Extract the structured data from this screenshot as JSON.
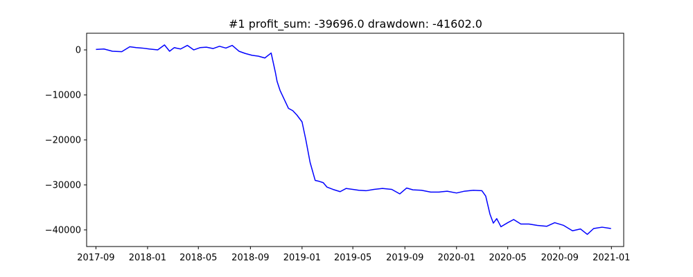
{
  "chart_data": {
    "type": "line",
    "title": "#1   profit_sum: -39696.0 drawdown: -41602.0",
    "xlabel": "",
    "ylabel": "",
    "x_scale": "time",
    "xlim": [
      "2017-08-10",
      "2021-01-30"
    ],
    "ylim": [
      -43700,
      3700
    ],
    "grid": false,
    "x_ticks": [
      "2017-09",
      "2018-01",
      "2018-05",
      "2018-09",
      "2019-01",
      "2019-05",
      "2019-09",
      "2020-01",
      "2020-05",
      "2020-09",
      "2021-01"
    ],
    "y_ticks": [
      0,
      -10000,
      -20000,
      -30000,
      -40000
    ],
    "y_tick_labels": [
      "0",
      "−10000",
      "−20000",
      "−30000",
      "−40000"
    ],
    "series": [
      {
        "color": "#0000ff",
        "x": [
          "2017-09-01",
          "2017-09-20",
          "2017-10-10",
          "2017-11-01",
          "2017-11-20",
          "2017-12-05",
          "2017-12-20",
          "2018-01-05",
          "2018-01-25",
          "2018-02-10",
          "2018-02-22",
          "2018-03-05",
          "2018-03-20",
          "2018-04-05",
          "2018-04-20",
          "2018-05-05",
          "2018-05-20",
          "2018-06-05",
          "2018-06-20",
          "2018-07-05",
          "2018-07-20",
          "2018-08-05",
          "2018-08-20",
          "2018-09-05",
          "2018-09-20",
          "2018-10-05",
          "2018-10-20",
          "2018-10-30",
          "2018-11-03",
          "2018-11-10",
          "2018-11-20",
          "2018-11-30",
          "2018-12-10",
          "2018-12-20",
          "2019-01-01",
          "2019-01-10",
          "2019-01-20",
          "2019-02-01",
          "2019-02-10",
          "2019-02-20",
          "2019-03-01",
          "2019-03-15",
          "2019-04-01",
          "2019-04-15",
          "2019-05-01",
          "2019-05-15",
          "2019-06-01",
          "2019-06-20",
          "2019-07-10",
          "2019-08-01",
          "2019-08-20",
          "2019-09-05",
          "2019-09-20",
          "2019-10-10",
          "2019-11-01",
          "2019-11-20",
          "2019-12-10",
          "2020-01-01",
          "2020-01-20",
          "2020-02-10",
          "2020-03-01",
          "2020-03-10",
          "2020-03-20",
          "2020-03-28",
          "2020-04-05",
          "2020-04-15",
          "2020-05-01",
          "2020-05-15",
          "2020-06-01",
          "2020-06-20",
          "2020-07-10",
          "2020-08-01",
          "2020-08-20",
          "2020-09-10",
          "2020-10-01",
          "2020-10-20",
          "2020-11-05",
          "2020-11-20",
          "2020-12-10",
          "2020-12-31"
        ],
        "values": [
          100,
          200,
          -300,
          -400,
          700,
          500,
          400,
          200,
          0,
          1100,
          -300,
          500,
          200,
          1000,
          0,
          500,
          600,
          300,
          800,
          400,
          1000,
          -300,
          -800,
          -1200,
          -1400,
          -1800,
          -700,
          -5000,
          -7000,
          -9000,
          -11000,
          -13000,
          -13500,
          -14500,
          -16000,
          -20000,
          -25000,
          -29000,
          -29200,
          -29500,
          -30500,
          -31000,
          -31500,
          -30800,
          -31000,
          -31200,
          -31300,
          -31000,
          -30800,
          -31000,
          -32000,
          -30700,
          -31100,
          -31200,
          -31600,
          -31600,
          -31400,
          -31800,
          -31400,
          -31200,
          -31300,
          -32500,
          -36500,
          -38500,
          -37500,
          -39300,
          -38400,
          -37700,
          -38700,
          -38700,
          -39000,
          -39200,
          -38400,
          -39000,
          -40200,
          -39800,
          -41000,
          -39700,
          -39400,
          -39700
        ]
      }
    ]
  }
}
